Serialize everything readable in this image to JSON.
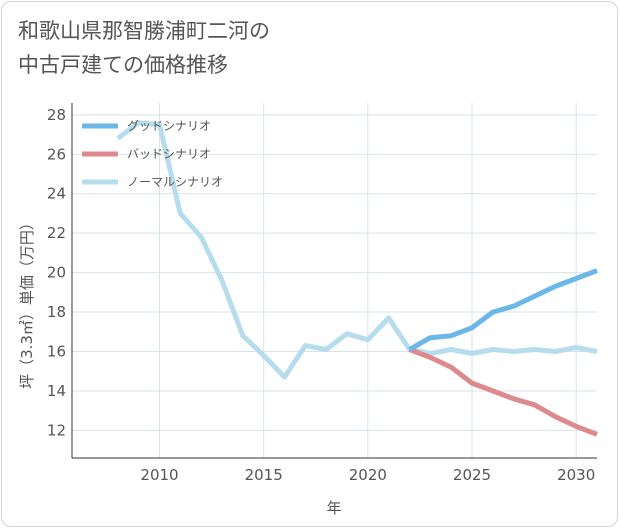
{
  "title_lines": [
    "和歌山県那智勝浦町二河の",
    "中古戸建ての価格推移"
  ],
  "chart_data": {
    "type": "line",
    "xlabel": "年",
    "ylabel": "坪（3.3㎡）単価（万円）",
    "xlim": [
      2005.8,
      2031
    ],
    "ylim": [
      10.6,
      28.6
    ],
    "xticks": [
      2010,
      2015,
      2020,
      2025,
      2030
    ],
    "yticks": [
      12,
      14,
      16,
      18,
      20,
      22,
      24,
      26,
      28
    ],
    "grid": true,
    "legend_position": "top-left",
    "series": [
      {
        "name": "グッドシナリオ",
        "color": "#6cb7ea",
        "x": [
          2022,
          2023,
          2024,
          2025,
          2026,
          2027,
          2028,
          2029,
          2030,
          2031
        ],
        "y": [
          16.1,
          16.7,
          16.8,
          17.2,
          18.0,
          18.3,
          18.8,
          19.3,
          19.7,
          20.1
        ]
      },
      {
        "name": "バッドシナリオ",
        "color": "#dd8a8f",
        "x": [
          2022,
          2023,
          2024,
          2025,
          2026,
          2027,
          2028,
          2029,
          2030,
          2031
        ],
        "y": [
          16.1,
          15.7,
          15.2,
          14.4,
          14.0,
          13.6,
          13.3,
          12.7,
          12.2,
          11.8
        ]
      },
      {
        "name": "ノーマルシナリオ",
        "color": "#b7dcee",
        "x": [
          2008,
          2009,
          2010,
          2011,
          2012,
          2013,
          2014,
          2015,
          2016,
          2017,
          2018,
          2019,
          2020,
          2021,
          2022,
          2023,
          2024,
          2025,
          2026,
          2027,
          2028,
          2029,
          2030,
          2031
        ],
        "y": [
          26.8,
          27.6,
          27.5,
          23.0,
          21.8,
          19.6,
          16.8,
          15.8,
          14.7,
          16.3,
          16.1,
          16.9,
          16.6,
          17.7,
          16.1,
          15.9,
          16.1,
          15.9,
          16.1,
          16.0,
          16.1,
          16.0,
          16.2,
          16.0
        ]
      }
    ]
  }
}
